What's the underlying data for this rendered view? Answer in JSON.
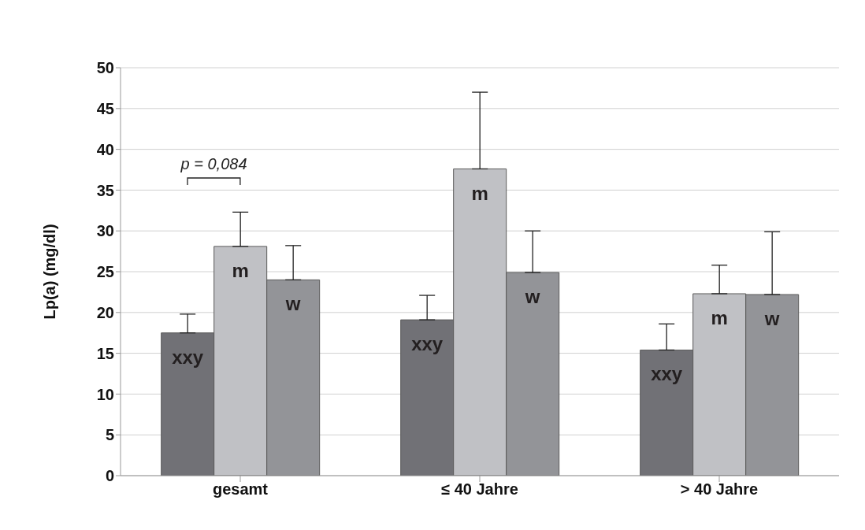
{
  "chart_data": {
    "type": "bar",
    "ylabel": "Lp(a) (mg/dl)",
    "categories": [
      "gesamt",
      "≤ 40 Jahre",
      "> 40 Jahre"
    ],
    "series": [
      {
        "name": "xxy",
        "color": "#717176",
        "values": [
          17.5,
          19.1,
          15.4
        ],
        "errors": [
          [
            17.5,
            19.8
          ],
          [
            19.1,
            22.1
          ],
          [
            15.4,
            18.6
          ]
        ]
      },
      {
        "name": "m",
        "color": "#c0c1c5",
        "values": [
          28.1,
          37.6,
          22.3
        ],
        "errors": [
          [
            28.1,
            32.3
          ],
          [
            37.6,
            47.0
          ],
          [
            22.3,
            25.8
          ]
        ]
      },
      {
        "name": "w",
        "color": "#939498",
        "values": [
          24.0,
          24.9,
          22.2
        ],
        "errors": [
          [
            24.0,
            28.2
          ],
          [
            24.9,
            30.0
          ],
          [
            22.2,
            29.9
          ]
        ]
      }
    ],
    "ylim": [
      0,
      50
    ],
    "yticks": [
      0,
      5,
      10,
      15,
      20,
      25,
      30,
      35,
      40,
      45,
      50
    ],
    "grid": "y",
    "legend": false,
    "annotations": [
      "p = 0,084"
    ]
  }
}
